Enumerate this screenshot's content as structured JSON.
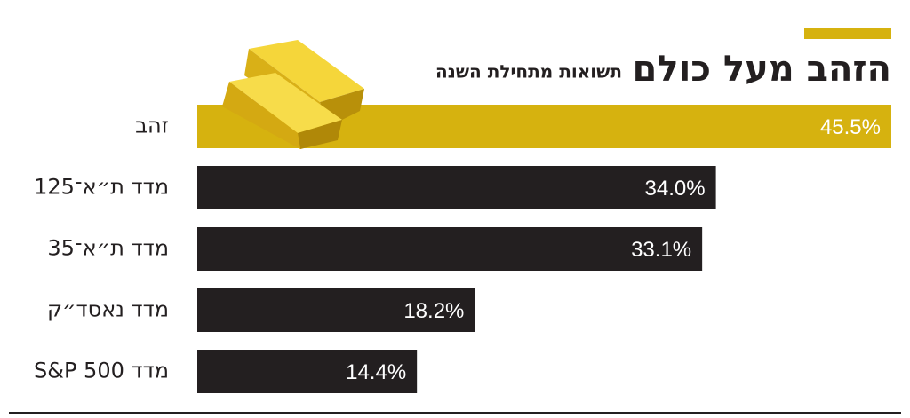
{
  "chart_data": {
    "type": "bar",
    "orientation": "horizontal",
    "title": "הזהב מעל כולם",
    "subtitle": "תשואות מתחילת השנה",
    "categories": [
      "זהב",
      "מדד ת״א־125",
      "מדד ת״א־35",
      "מדד נאסד״ק",
      "מדד S&P 500"
    ],
    "values": [
      45.5,
      34.0,
      33.1,
      18.2,
      14.4
    ],
    "value_labels": [
      "45.5%",
      "34.0%",
      "33.1%",
      "18.2%",
      "14.4%"
    ],
    "colors": [
      "#d6b20f",
      "#231f20",
      "#231f20",
      "#231f20",
      "#231f20"
    ]
  }
}
